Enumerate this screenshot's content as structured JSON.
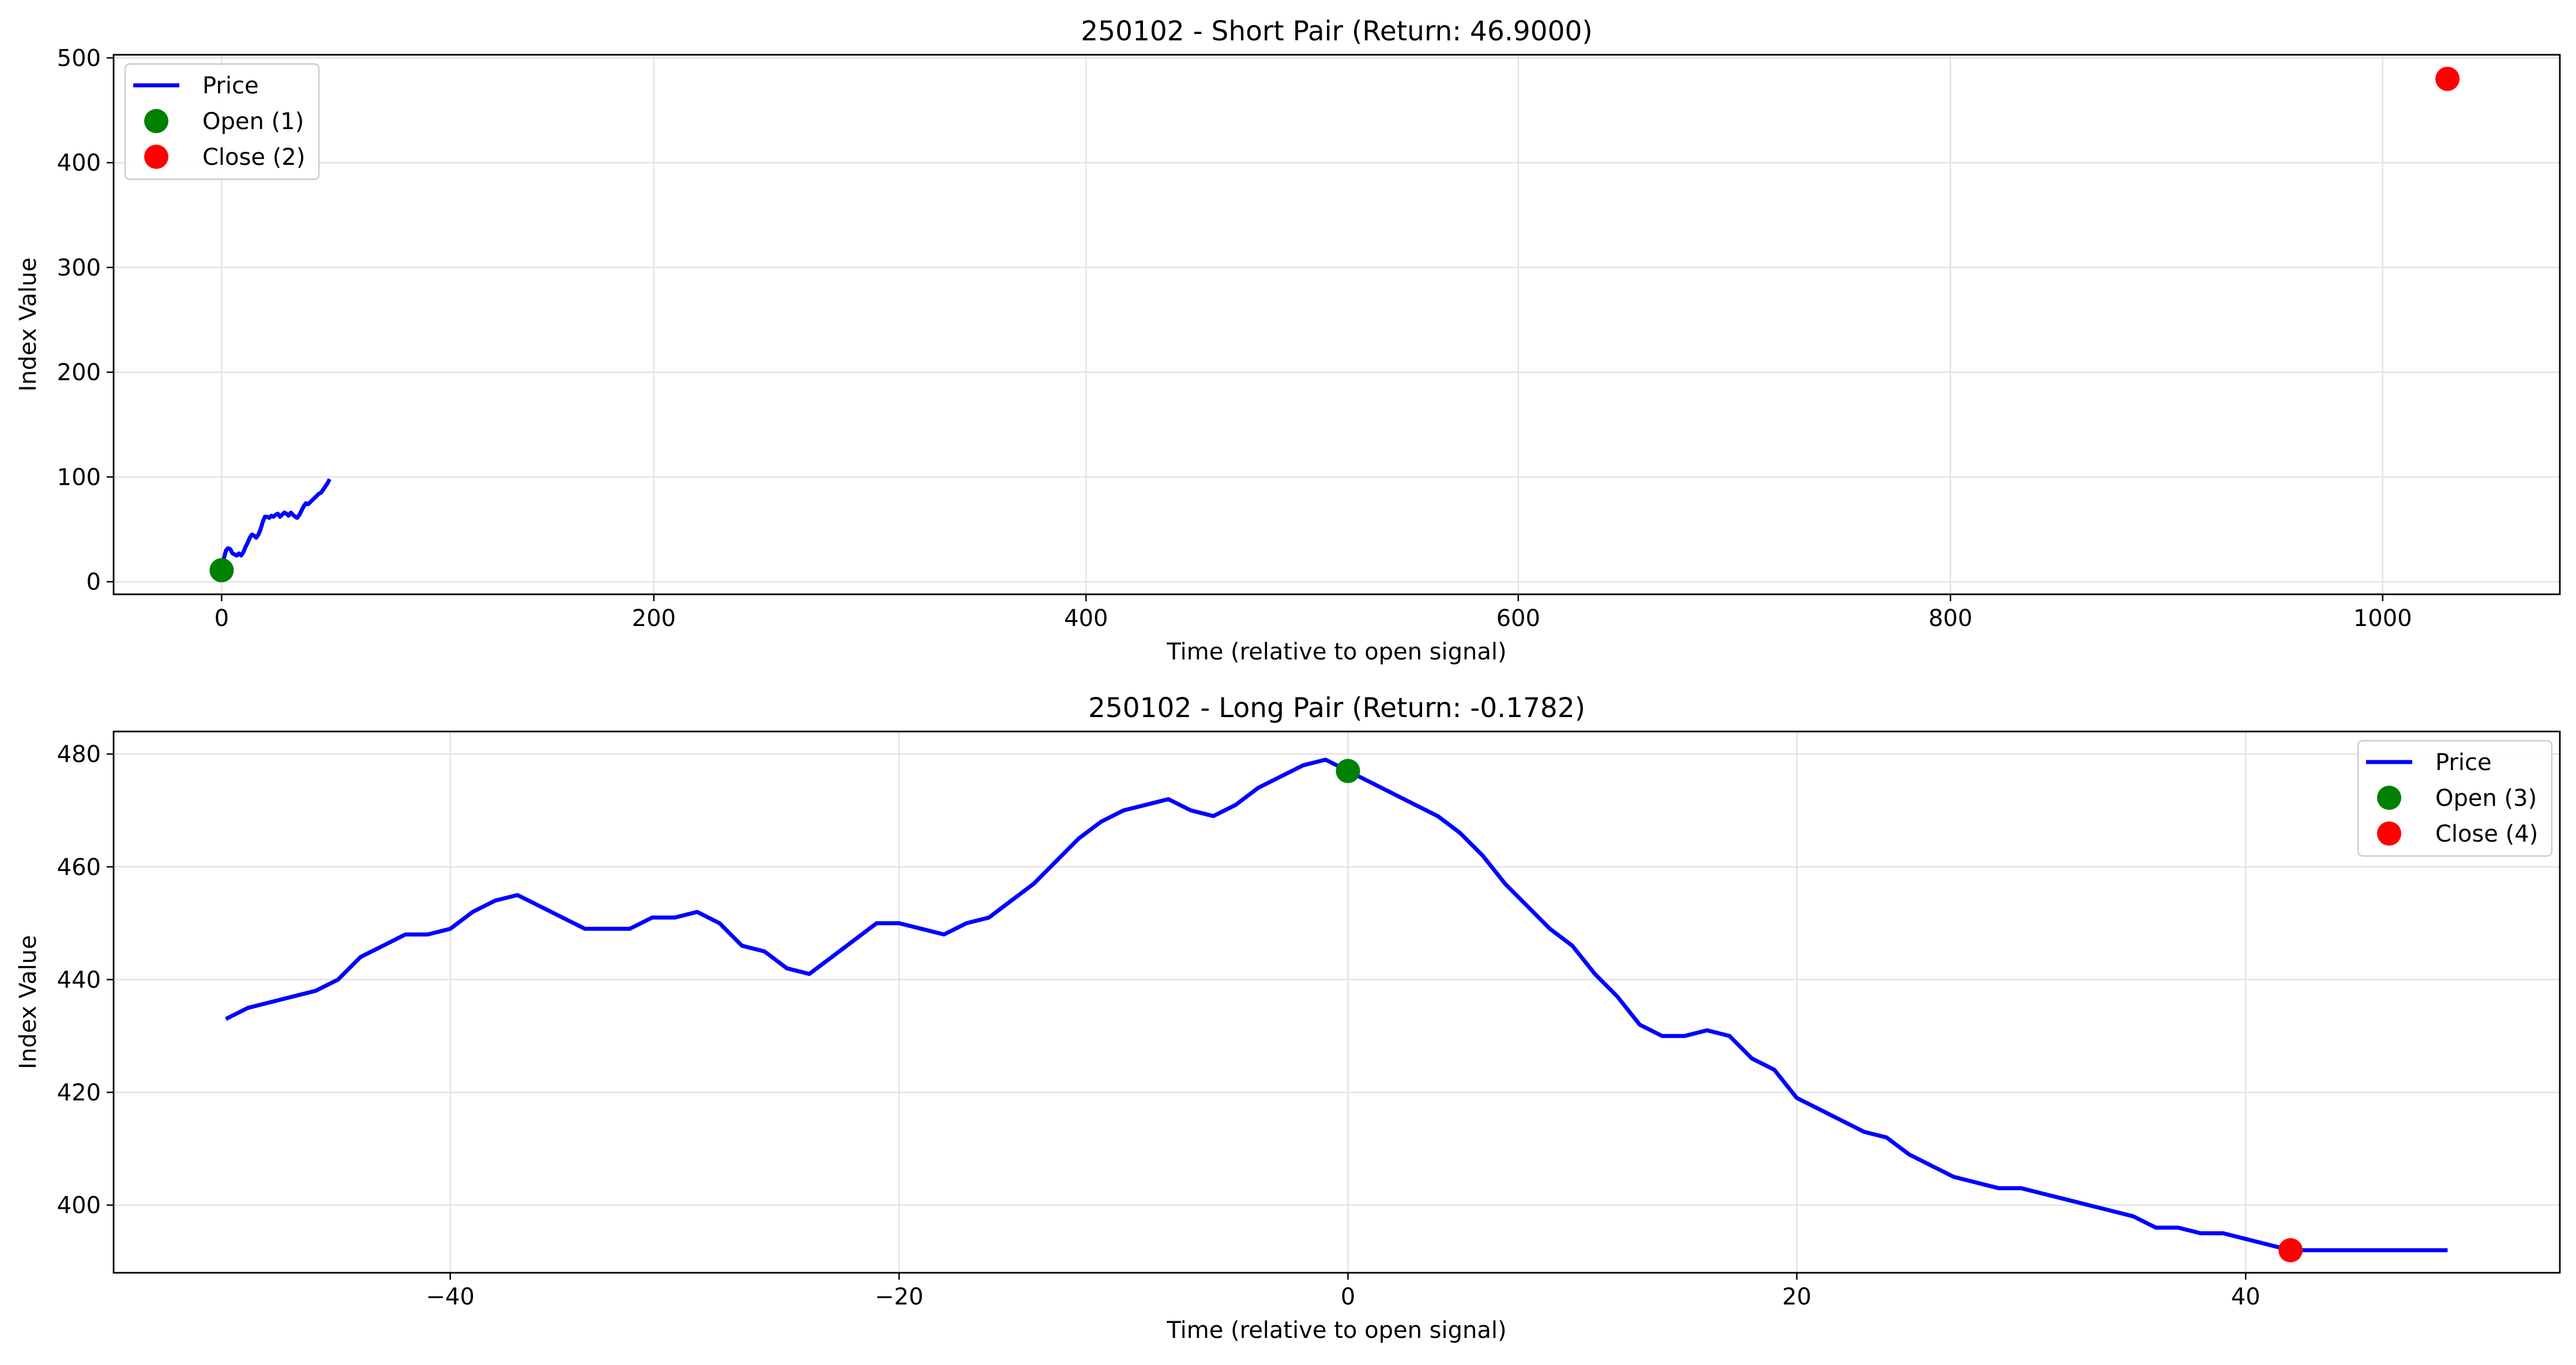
{
  "figure": {
    "background": "#ffffff"
  },
  "chart_data": [
    {
      "type": "line",
      "title": "250102 - Short Pair (Return: 46.9000)",
      "xlabel": "Time (relative to open signal)",
      "ylabel": "Index Value",
      "xlim": [
        -50,
        1082
      ],
      "ylim": [
        -12,
        503
      ],
      "xticks": [
        0,
        200,
        400,
        600,
        800,
        1000
      ],
      "yticks": [
        0,
        100,
        200,
        300,
        400,
        500
      ],
      "xtick_labels": [
        "0",
        "200",
        "400",
        "600",
        "800",
        "1000"
      ],
      "ytick_labels": [
        "0",
        "100",
        "200",
        "300",
        "400",
        "500"
      ],
      "grid": true,
      "legend_position": "upper-left",
      "legend": [
        {
          "label": "Price",
          "kind": "line",
          "color": "#0000ff"
        },
        {
          "label": "Open (1)",
          "kind": "marker",
          "color": "#008000"
        },
        {
          "label": "Close (2)",
          "kind": "marker",
          "color": "#ff0000"
        }
      ],
      "series": [
        {
          "name": "Price",
          "color": "#0000ff",
          "x": [
            0,
            1,
            2,
            3,
            4,
            5,
            6,
            7,
            8,
            9,
            10,
            11,
            12,
            13,
            14,
            15,
            16,
            17,
            18,
            19,
            20,
            21,
            22,
            23,
            24,
            25,
            26,
            27,
            28,
            29,
            30,
            31,
            32,
            33,
            34,
            35,
            36,
            37,
            38,
            39,
            40,
            41,
            42,
            43,
            44,
            45,
            46,
            47,
            48,
            49,
            50
          ],
          "y": [
            12,
            22,
            30,
            32,
            31,
            27,
            26,
            25,
            27,
            25,
            28,
            33,
            37,
            42,
            45,
            44,
            42,
            45,
            50,
            57,
            62,
            62,
            61,
            63,
            62,
            64,
            65,
            62,
            64,
            66,
            65,
            63,
            66,
            64,
            62,
            61,
            64,
            68,
            72,
            75,
            74,
            76,
            78,
            80,
            82,
            84,
            85,
            88,
            91,
            94,
            98
          ]
        }
      ],
      "markers": [
        {
          "name": "Open (1)",
          "x": 0,
          "y": 11,
          "color": "#008000"
        },
        {
          "name": "Close (2)",
          "x": 1030,
          "y": 480,
          "color": "#ff0000"
        }
      ]
    },
    {
      "type": "line",
      "title": "250102 - Long Pair (Return: -0.1782)",
      "xlabel": "Time (relative to open signal)",
      "ylabel": "Index Value",
      "xlim": [
        -55,
        54
      ],
      "ylim": [
        388,
        484
      ],
      "xticks": [
        -40,
        -20,
        0,
        20,
        40
      ],
      "yticks": [
        400,
        420,
        440,
        460,
        480
      ],
      "xtick_labels": [
        "−40",
        "−20",
        "0",
        "20",
        "40"
      ],
      "ytick_labels": [
        "400",
        "420",
        "440",
        "460",
        "480"
      ],
      "grid": true,
      "legend_position": "upper-right",
      "legend": [
        {
          "label": "Price",
          "kind": "line",
          "color": "#0000ff"
        },
        {
          "label": "Open (3)",
          "kind": "marker",
          "color": "#008000"
        },
        {
          "label": "Close (4)",
          "kind": "marker",
          "color": "#ff0000"
        }
      ],
      "series": [
        {
          "name": "Price",
          "color": "#0000ff",
          "x": [
            -50,
            -49,
            -48,
            -47,
            -46,
            -45,
            -44,
            -43,
            -42,
            -41,
            -40,
            -39,
            -38,
            -37,
            -36,
            -35,
            -34,
            -33,
            -32,
            -31,
            -30,
            -29,
            -28,
            -27,
            -26,
            -25,
            -24,
            -23,
            -22,
            -21,
            -20,
            -19,
            -18,
            -17,
            -16,
            -15,
            -14,
            -13,
            -12,
            -11,
            -10,
            -9,
            -8,
            -7,
            -6,
            -5,
            -4,
            -3,
            -2,
            -1,
            0,
            1,
            2,
            3,
            4,
            5,
            6,
            7,
            8,
            9,
            10,
            11,
            12,
            13,
            14,
            15,
            16,
            17,
            18,
            19,
            20,
            21,
            22,
            23,
            24,
            25,
            26,
            27,
            28,
            29,
            30,
            31,
            32,
            33,
            34,
            35,
            36,
            37,
            38,
            39,
            40,
            41,
            42,
            43,
            44,
            45,
            46,
            47,
            48,
            49
          ],
          "y": [
            433,
            435,
            436,
            437,
            438,
            440,
            444,
            446,
            448,
            448,
            449,
            452,
            454,
            455,
            453,
            451,
            449,
            449,
            449,
            451,
            451,
            452,
            450,
            446,
            445,
            442,
            441,
            444,
            447,
            450,
            450,
            449,
            448,
            450,
            451,
            454,
            457,
            461,
            465,
            468,
            470,
            471,
            472,
            470,
            469,
            471,
            474,
            476,
            478,
            479,
            477,
            475,
            473,
            471,
            469,
            466,
            462,
            457,
            453,
            449,
            446,
            441,
            437,
            432,
            430,
            430,
            431,
            430,
            426,
            424,
            419,
            417,
            415,
            413,
            412,
            409,
            407,
            405,
            404,
            403,
            403,
            402,
            401,
            400,
            399,
            398,
            396,
            396,
            395,
            395,
            394,
            393,
            392,
            392,
            392,
            392,
            392,
            392,
            392,
            392
          ]
        }
      ],
      "markers": [
        {
          "name": "Open (3)",
          "x": 0,
          "y": 477,
          "color": "#008000"
        },
        {
          "name": "Close (4)",
          "x": 42,
          "y": 392,
          "color": "#ff0000"
        }
      ]
    }
  ]
}
